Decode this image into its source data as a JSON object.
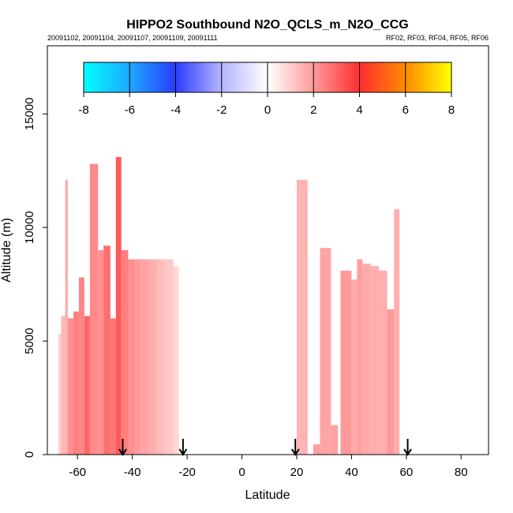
{
  "chart_data": {
    "type": "heatmap",
    "title": "HIPPO2 Southbound N2O_QCLS_m_N2O_CCG",
    "subtitle_left": "20091102, 20091104, 20091107, 20091109, 20091111",
    "subtitle_right": "RF02, RF03, RF04, RF05, RF06",
    "xlabel": "Latitude",
    "ylabel": "Altitude (m)",
    "xlim": [
      -71,
      90
    ],
    "ylim": [
      0,
      18000
    ],
    "x_ticks": [
      -60,
      -40,
      -20,
      0,
      20,
      40,
      60,
      80
    ],
    "x_tick_labels": [
      "-60",
      "-40",
      "-20",
      "0",
      "20",
      "40",
      "60",
      "80"
    ],
    "y_ticks": [
      0,
      5000,
      10000,
      15000
    ],
    "y_tick_labels": [
      "0",
      "5000",
      "10000",
      "15000"
    ],
    "colorbar": {
      "min": -8,
      "max": 8,
      "ticks": [
        -8,
        -6,
        -4,
        -2,
        0,
        2,
        4,
        6,
        8
      ],
      "tick_labels": [
        "-8",
        "-6",
        "-4",
        "-2",
        "0",
        "2",
        "4",
        "6",
        "8"
      ],
      "colors": [
        {
          "value": -8,
          "color": "#00ffff"
        },
        {
          "value": -6,
          "color": "#1ea8ff"
        },
        {
          "value": -4,
          "color": "#2a3cff"
        },
        {
          "value": -2,
          "color": "#b4b4ff"
        },
        {
          "value": 0,
          "color": "#ffffff"
        },
        {
          "value": 2,
          "color": "#ff9a9a"
        },
        {
          "value": 4,
          "color": "#ff2e2e"
        },
        {
          "value": 6,
          "color": "#ff8a00"
        },
        {
          "value": 8,
          "color": "#ffff00"
        }
      ]
    },
    "flight_arrows_lat": [
      -43.5,
      -21.5,
      19.5,
      60.5
    ],
    "profiles": [
      {
        "lat": [
          -67,
          -66
        ],
        "alt": [
          0,
          5300
        ],
        "value": 1.0
      },
      {
        "lat": [
          -66,
          -64.5
        ],
        "alt": [
          0,
          6100
        ],
        "value": 1.4
      },
      {
        "lat": [
          -64.5,
          -63.5
        ],
        "alt": [
          0,
          12100
        ],
        "value": 1.6
      },
      {
        "lat": [
          -63.5,
          -61.5
        ],
        "alt": [
          0,
          6000
        ],
        "value": 2.2
      },
      {
        "lat": [
          -61.5,
          -59.5
        ],
        "alt": [
          0,
          6300
        ],
        "value": 2.5
      },
      {
        "lat": [
          -59.5,
          -57.5
        ],
        "alt": [
          0,
          7800
        ],
        "value": 2.4
      },
      {
        "lat": [
          -57.5,
          -55.5
        ],
        "alt": [
          0,
          6100
        ],
        "value": 3.0
      },
      {
        "lat": [
          -55.5,
          -52.5
        ],
        "alt": [
          0,
          12800
        ],
        "value": 2.3
      },
      {
        "lat": [
          -52.5,
          -50.5
        ],
        "alt": [
          0,
          9000
        ],
        "value": 2.2
      },
      {
        "lat": [
          -50.5,
          -48
        ],
        "alt": [
          0,
          9200
        ],
        "value": 2.8
      },
      {
        "lat": [
          -48,
          -46
        ],
        "alt": [
          0,
          6000
        ],
        "value": 2.7
      },
      {
        "lat": [
          -46,
          -44
        ],
        "alt": [
          0,
          13100
        ],
        "value": 3.2
      },
      {
        "lat": [
          -44,
          -41.5
        ],
        "alt": [
          0,
          9000
        ],
        "value": 2.5
      },
      {
        "lat": [
          -41.5,
          -39
        ],
        "alt": [
          0,
          8600
        ],
        "value": 2.2
      },
      {
        "lat": [
          -39,
          -37
        ],
        "alt": [
          0,
          8600
        ],
        "value": 2.0
      },
      {
        "lat": [
          -37,
          -34
        ],
        "alt": [
          0,
          8600
        ],
        "value": 1.8
      },
      {
        "lat": [
          -34,
          -31
        ],
        "alt": [
          0,
          8600
        ],
        "value": 1.6
      },
      {
        "lat": [
          -31,
          -28
        ],
        "alt": [
          0,
          8600
        ],
        "value": 1.3
      },
      {
        "lat": [
          -28,
          -25
        ],
        "alt": [
          0,
          8600
        ],
        "value": 1.1
      },
      {
        "lat": [
          -25,
          -23
        ],
        "alt": [
          0,
          8300
        ],
        "value": 0.8
      },
      {
        "lat": [
          20,
          24
        ],
        "alt": [
          0,
          12100
        ],
        "value": 1.5
      },
      {
        "lat": [
          26,
          28.5
        ],
        "alt": [
          0,
          450
        ],
        "value": 1.9
      },
      {
        "lat": [
          28.5,
          32.5
        ],
        "alt": [
          0,
          9100
        ],
        "value": 1.8
      },
      {
        "lat": [
          32.5,
          35
        ],
        "alt": [
          0,
          1300
        ],
        "value": 1.9
      },
      {
        "lat": [
          36,
          40
        ],
        "alt": [
          0,
          8100
        ],
        "value": 2.0
      },
      {
        "lat": [
          40,
          42
        ],
        "alt": [
          0,
          7700
        ],
        "value": 1.7
      },
      {
        "lat": [
          42,
          44
        ],
        "alt": [
          0,
          8600
        ],
        "value": 1.9
      },
      {
        "lat": [
          44,
          47
        ],
        "alt": [
          0,
          8400
        ],
        "value": 1.7
      },
      {
        "lat": [
          47,
          50
        ],
        "alt": [
          0,
          8300
        ],
        "value": 1.6
      },
      {
        "lat": [
          50,
          53
        ],
        "alt": [
          0,
          8100
        ],
        "value": 1.6
      },
      {
        "lat": [
          53,
          55.5
        ],
        "alt": [
          0,
          6400
        ],
        "value": 2.0
      },
      {
        "lat": [
          55.5,
          57.5
        ],
        "alt": [
          0,
          10800
        ],
        "value": 1.6
      }
    ]
  }
}
